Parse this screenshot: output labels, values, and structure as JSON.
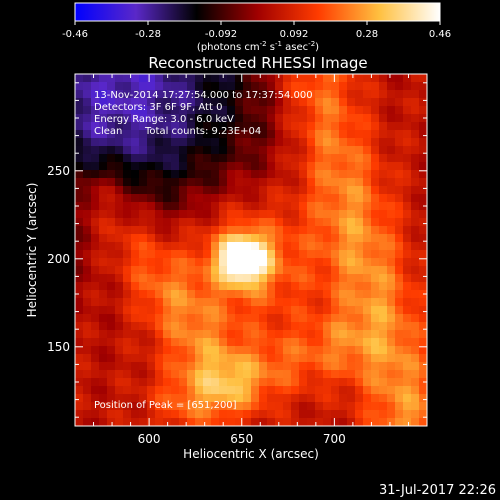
{
  "colorbar": {
    "ticks": [
      "-0.46",
      "-0.28",
      "-0.092",
      "0.092",
      "0.28",
      "0.46"
    ],
    "unit_main": "(photons cm",
    "unit_exp1": "-2",
    "unit_mid": " s",
    "unit_exp2": "-1",
    "unit_mid2": " asec",
    "unit_exp3": "-2",
    "unit_end": ")"
  },
  "title": "Reconstructed RHESSI Image",
  "annotations": {
    "time": "13-Nov-2014 17:27:54.000 to 17:37:54.000",
    "detectors": "Detectors: 3F 6F 9F, Att 0",
    "energy": "Energy Range: 3.0 - 6.0 keV",
    "method": "Clean",
    "counts": "Total counts: 9.23E+04",
    "peak": "Position of Peak = [651,200]"
  },
  "footer": {
    "date": "31-Jul-2017 22:26"
  },
  "chart_data": {
    "type": "heatmap",
    "title": "Reconstructed RHESSI Image",
    "xlabel": "Heliocentric X (arcsec)",
    "ylabel": "Heliocentric Y (arcsec)",
    "xlim": [
      560,
      750
    ],
    "ylim": [
      105,
      305
    ],
    "xticks": [
      600,
      650,
      700
    ],
    "yticks": [
      150,
      200,
      250
    ],
    "colorscale_range": [
      -0.46,
      0.46
    ],
    "colormap": [
      "#0000ff",
      "#5a28c8",
      "#000000",
      "#a00000",
      "#ff3c00",
      "#ffc040",
      "#ffffff"
    ],
    "peak_position": [
      651,
      200
    ],
    "sources": [
      {
        "x": 651,
        "y": 200,
        "amp": 0.46,
        "sigma": 9
      },
      {
        "x": 651,
        "y": 200,
        "amp": 0.2,
        "sigma": 28
      }
    ],
    "ridges": [
      {
        "x1": 690,
        "y1": 300,
        "x2": 740,
        "y2": 110,
        "amp": 0.2,
        "width": 16
      },
      {
        "x1": 575,
        "y1": 235,
        "x2": 640,
        "y2": 130,
        "amp": 0.16,
        "width": 14
      },
      {
        "x1": 620,
        "y1": 120,
        "x2": 700,
        "y2": 150,
        "amp": 0.13,
        "width": 14
      }
    ],
    "background": 0.05,
    "negative_region": {
      "x": 585,
      "y": 295,
      "amp": -0.35,
      "sigma": 55
    }
  }
}
